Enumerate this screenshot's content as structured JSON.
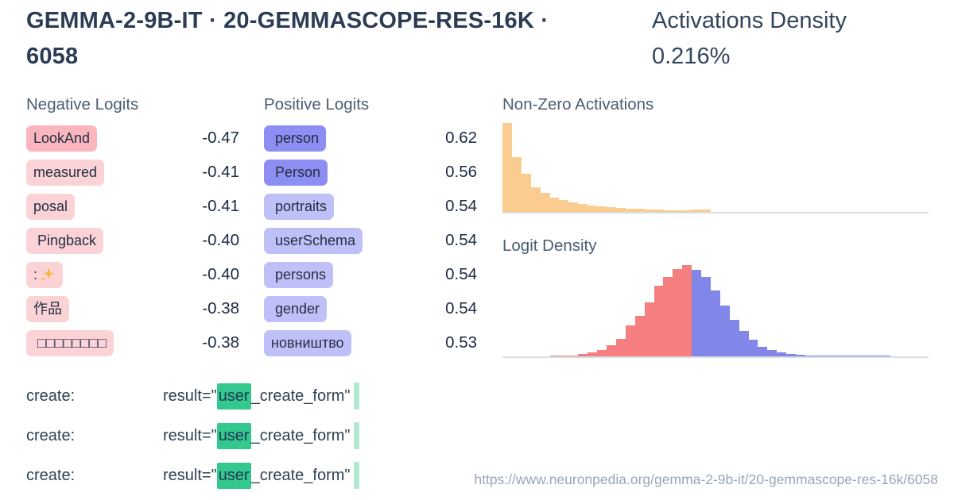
{
  "header": {
    "title": "GEMMA-2-9B-IT · 20-GEMMASCOPE-RES-16K · 6058",
    "density_label": "Activations Density",
    "density_value": "0.216%"
  },
  "negative_logits": {
    "label": "Negative Logits",
    "items": [
      {
        "token": "LookAnd",
        "value": "-0.47",
        "shade": "dark"
      },
      {
        "token": "measured",
        "value": "-0.41",
        "shade": "light"
      },
      {
        "token": "posal",
        "value": "-0.41",
        "shade": "light"
      },
      {
        "token": " Pingback",
        "value": "-0.40",
        "shade": "light"
      },
      {
        "token": ":✨",
        "value": "-0.40",
        "shade": "light"
      },
      {
        "token": "作品",
        "value": "-0.38",
        "shade": "light"
      },
      {
        "token": " □□□□□□□□",
        "value": "-0.38",
        "shade": "light"
      }
    ]
  },
  "positive_logits": {
    "label": "Positive Logits",
    "items": [
      {
        "token": " person",
        "value": "0.62",
        "shade": "dark"
      },
      {
        "token": " Person",
        "value": "0.56",
        "shade": "dark"
      },
      {
        "token": " portraits",
        "value": "0.54",
        "shade": "light"
      },
      {
        "token": " userSchema",
        "value": "0.54",
        "shade": "light"
      },
      {
        "token": " persons",
        "value": "0.54",
        "shade": "light"
      },
      {
        "token": " gender",
        "value": "0.54",
        "shade": "light"
      },
      {
        "token": "новништво",
        "value": "0.53",
        "shade": "light"
      }
    ]
  },
  "chart_data": [
    {
      "type": "bar",
      "title": "Non-Zero Activations",
      "values": [
        1.0,
        0.62,
        0.43,
        0.28,
        0.21,
        0.165,
        0.135,
        0.11,
        0.09,
        0.075,
        0.062,
        0.052,
        0.044,
        0.038,
        0.033,
        0.028,
        0.024,
        0.02,
        0.017,
        0.014,
        0.03,
        0.026,
        0,
        0,
        0,
        0,
        0,
        0,
        0,
        0,
        0,
        0,
        0,
        0,
        0,
        0,
        0,
        0,
        0,
        0,
        0,
        0,
        0,
        0,
        0
      ],
      "bar_color": "#facc90",
      "ylim": [
        0,
        1
      ],
      "grid": false,
      "note": "right-skewed decay histogram, normalized heights"
    },
    {
      "type": "bar",
      "title": "Logit Density",
      "values": [
        0,
        0,
        0,
        0,
        0,
        0.006,
        0.008,
        0.012,
        0.03,
        0.045,
        0.07,
        0.12,
        0.19,
        0.34,
        0.44,
        0.59,
        0.77,
        0.87,
        0.96,
        1.0,
        0.95,
        0.87,
        0.72,
        0.56,
        0.4,
        0.28,
        0.18,
        0.1,
        0.07,
        0.045,
        0.03,
        0.02,
        0.013,
        0.009,
        0.006,
        0.004,
        0.003,
        0.002,
        0.002,
        0.001,
        0.001,
        0,
        0,
        0,
        0
      ],
      "split_index": 20,
      "colors": {
        "negative_side": "#f57f80",
        "positive_side": "#8286e8"
      },
      "ylim": [
        0,
        1
      ],
      "grid": false,
      "note": "bell-shaped histogram; bars left of split are red (negative logits), right are blue (positive logits)"
    }
  ],
  "snippets": {
    "rows": [
      {
        "label": "create:",
        "prefix": "result=\"",
        "highlight": "user",
        "suffix": "_create_form\""
      },
      {
        "label": "create:",
        "prefix": "result=\"",
        "highlight": "user",
        "suffix": "_create_form\""
      },
      {
        "label": "create:",
        "prefix": "result=\"",
        "highlight": "user",
        "suffix": "_create_form\""
      }
    ]
  },
  "footer": {
    "url": "https://www.neuronpedia.org/gemma-2-9b-it/20-gemmascope-res-16k/6058"
  },
  "colors": {
    "title_text": "#2c3c55",
    "section_label": "#4c5c72",
    "neg_badge_dark": "#fbb6bd",
    "neg_badge_light": "#fbd3d7",
    "pos_badge_dark": "#8c8ef2",
    "pos_badge_light": "#c0c0f8",
    "activation_bar": "#facc90",
    "logit_neg_bar": "#f57f80",
    "logit_pos_bar": "#8286e8",
    "baseline": "#d9dee3",
    "snippet_highlight": "#34c78e",
    "snippet_endbar": "#b3e9d2",
    "url_text": "#98a5b8"
  }
}
